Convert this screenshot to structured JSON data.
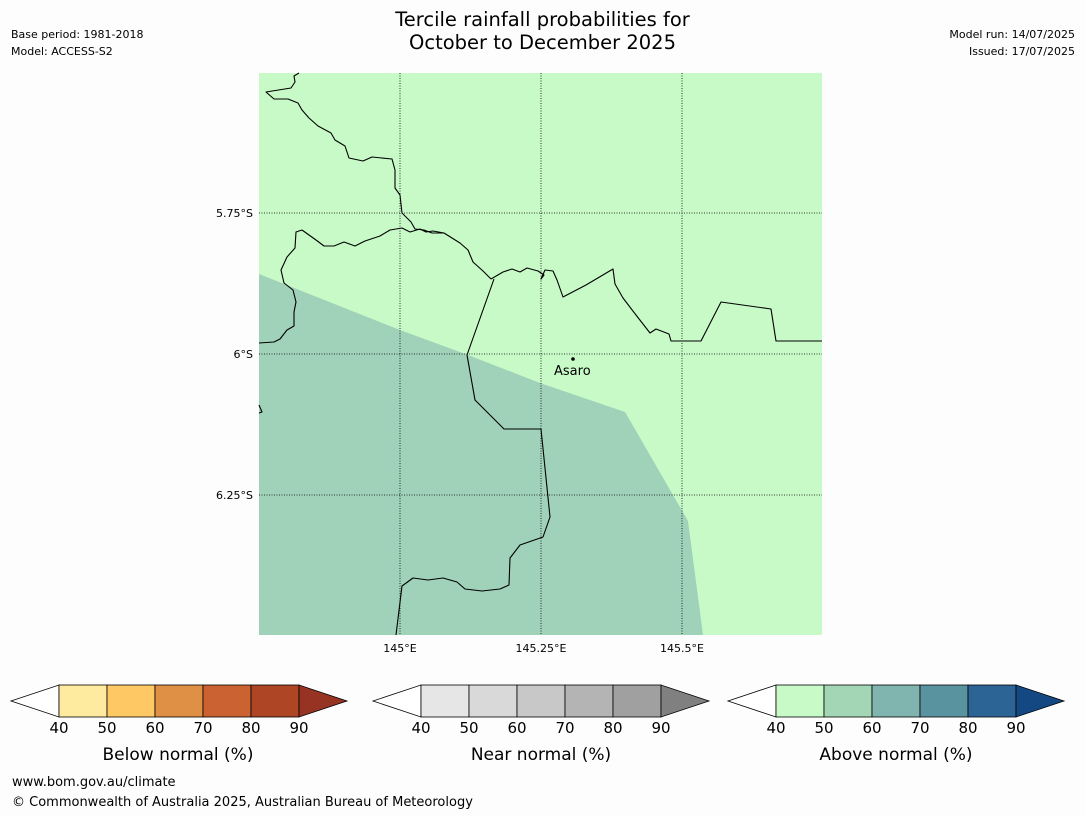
{
  "header": {
    "title_line1": "Tercile rainfall probabilities for",
    "title_line2": "October to December 2025",
    "base_period": "Base period: 1981-2018",
    "model": "Model: ACCESS-S2",
    "model_run": "Model run: 14/07/2025",
    "issued": "Issued: 17/07/2025"
  },
  "map": {
    "lat_labels": [
      "5.75°S",
      "6°S",
      "6.25°S"
    ],
    "lon_labels": [
      "145°E",
      "145.25°E",
      "145.5°E"
    ],
    "place": {
      "name": "Asaro"
    },
    "colors": {
      "above_40_50": "#c8fac8",
      "above_50_60": "#a0d2b9",
      "border": "#000000",
      "grid": "#000000"
    }
  },
  "colorbars": [
    {
      "label": "Below normal (%)",
      "ticks": [
        "40",
        "50",
        "60",
        "70",
        "80",
        "90"
      ],
      "colors": [
        "#ffeba0",
        "#fec964",
        "#e09044",
        "#cb6232",
        "#ae4524"
      ],
      "extend_color": "#973322"
    },
    {
      "label": "Near normal (%)",
      "ticks": [
        "40",
        "50",
        "60",
        "70",
        "80",
        "90"
      ],
      "colors": [
        "#e6e6e6",
        "#d9d9d9",
        "#c8c8c8",
        "#b4b4b4",
        "#a0a0a0"
      ],
      "extend_color": "#808080"
    },
    {
      "label": "Above normal (%)",
      "ticks": [
        "40",
        "50",
        "60",
        "70",
        "80",
        "90"
      ],
      "colors": [
        "#c8fac8",
        "#a3d6b5",
        "#80b4ae",
        "#5a93a0",
        "#2d6496"
      ],
      "extend_color": "#144882"
    }
  ],
  "footer": {
    "url": "www.bom.gov.au/climate",
    "copyright": "© Commonwealth of Australia 2025, Australian Bureau of Meteorology"
  }
}
